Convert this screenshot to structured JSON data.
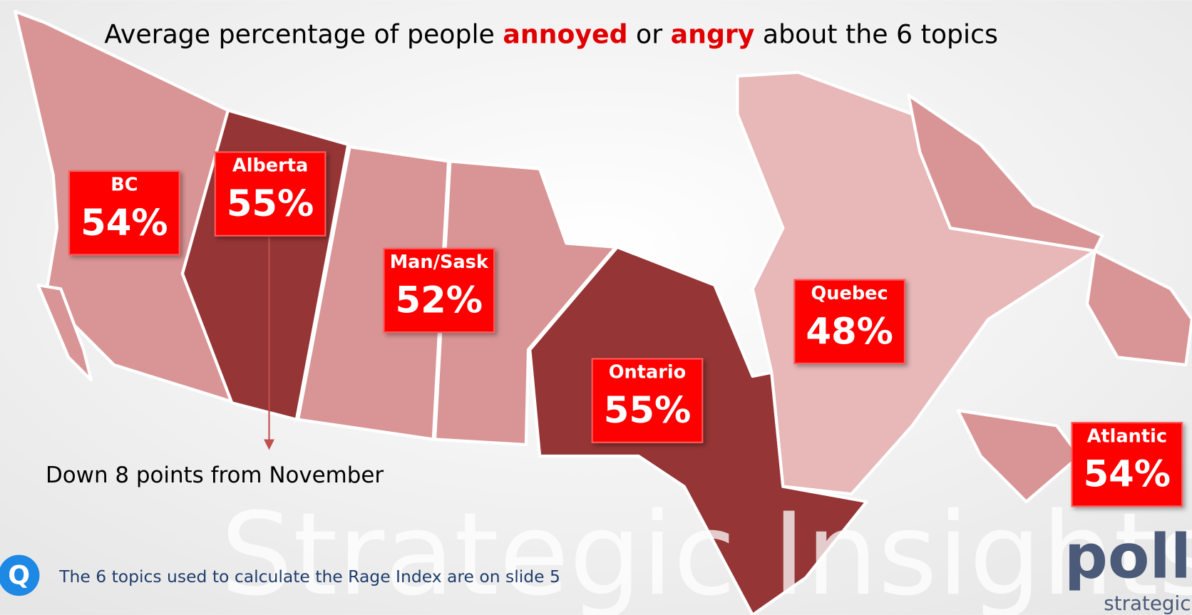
{
  "title": {
    "parts": [
      {
        "text": "Average percentage of people ",
        "emphasis": false
      },
      {
        "text": "annoyed",
        "emphasis": true
      },
      {
        "text": " or ",
        "emphasis": false
      },
      {
        "text": "angry",
        "emphasis": true
      },
      {
        "text": " about the 6 topics",
        "emphasis": false
      }
    ]
  },
  "regions": [
    {
      "name": "BC",
      "value": "54%"
    },
    {
      "name": "Alberta",
      "value": "55%"
    },
    {
      "name": "Man/Sask",
      "value": "52%"
    },
    {
      "name": "Ontario",
      "value": "55%"
    },
    {
      "name": "Quebec",
      "value": "48%"
    },
    {
      "name": "Atlantic",
      "value": "54%"
    }
  ],
  "annotation": "Down 8 points from November",
  "footer": {
    "icon": "Q",
    "note": "The 6 topics used to calculate the Rage Index are on slide 5"
  },
  "watermark": "Strategic Insights",
  "logo": {
    "name": "pollara",
    "tagline": "strategic"
  }
}
